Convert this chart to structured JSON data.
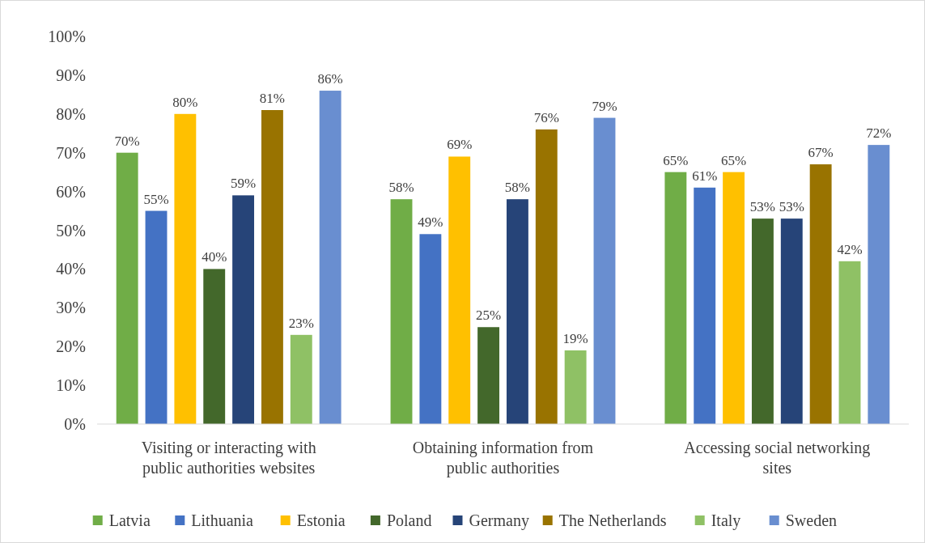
{
  "chart_data": {
    "type": "bar",
    "categories": [
      "Visiting or interacting with public authorities websites",
      "Obtaining information from public authorities",
      "Accessing social networking sites"
    ],
    "series": [
      {
        "name": "Latvia",
        "color": "#70ad47",
        "values": [
          70,
          58,
          65
        ],
        "value_labels": [
          "70%",
          "58%",
          "65%"
        ]
      },
      {
        "name": "Lithuania",
        "color": "#4472c4",
        "values": [
          55,
          49,
          61
        ],
        "value_labels": [
          "55%",
          "49%",
          "61%"
        ]
      },
      {
        "name": "Estonia",
        "color": "#ffc000",
        "values": [
          80,
          69,
          65
        ],
        "value_labels": [
          "80%",
          "69%",
          "65%"
        ]
      },
      {
        "name": "Poland",
        "color": "#43682b",
        "values": [
          40,
          25,
          53
        ],
        "value_labels": [
          "40%",
          "25%",
          "53%"
        ]
      },
      {
        "name": "Germany",
        "color": "#264478",
        "values": [
          59,
          58,
          53
        ],
        "value_labels": [
          "59%",
          "58%",
          "53%"
        ]
      },
      {
        "name": "The Netherlands",
        "color": "#997300",
        "values": [
          81,
          76,
          67
        ],
        "value_labels": [
          "81%",
          "76%",
          "67%"
        ]
      },
      {
        "name": "Italy",
        "color": "#8fc165",
        "values": [
          23,
          19,
          42
        ],
        "value_labels": [
          "23%",
          "19%",
          "42%"
        ]
      },
      {
        "name": "Sweden",
        "color": "#698ed0",
        "values": [
          86,
          79,
          72
        ],
        "value_labels": [
          "86%",
          "79%",
          "72%"
        ]
      }
    ],
    "ylim": [
      0,
      100
    ],
    "yticks": [
      {
        "value": 0,
        "label": "0%"
      },
      {
        "value": 10,
        "label": "10%"
      },
      {
        "value": 20,
        "label": "20%"
      },
      {
        "value": 30,
        "label": "30%"
      },
      {
        "value": 40,
        "label": "40%"
      },
      {
        "value": 50,
        "label": "50%"
      },
      {
        "value": 60,
        "label": "60%"
      },
      {
        "value": 70,
        "label": "70%"
      },
      {
        "value": 80,
        "label": "80%"
      },
      {
        "value": 90,
        "label": "90%"
      },
      {
        "value": 100,
        "label": "100%"
      }
    ],
    "legend": "bottom"
  }
}
